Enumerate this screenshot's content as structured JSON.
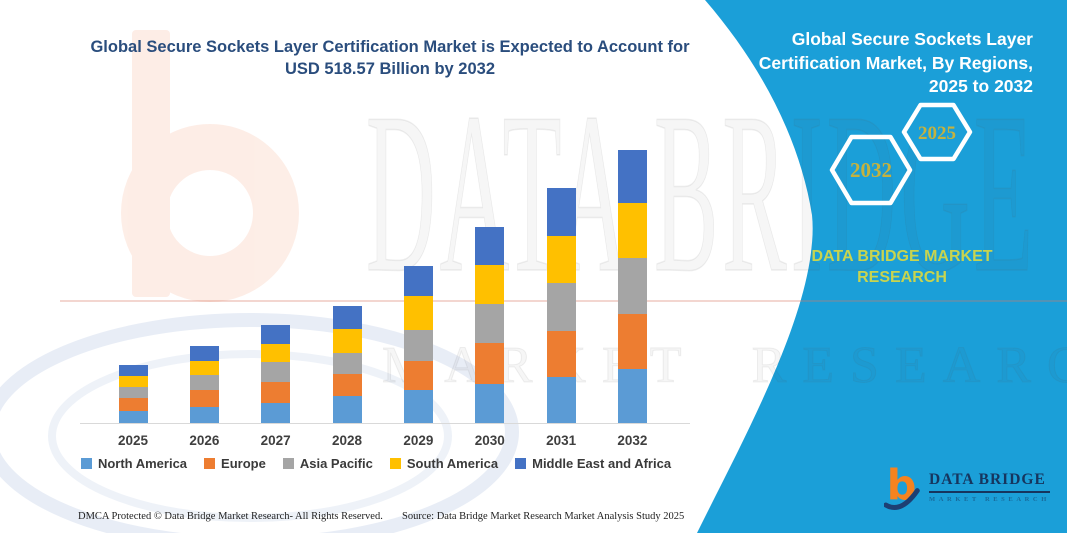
{
  "title": {
    "line1": "Global Secure Sockets Layer Certification Market is Expected to Account for",
    "line2": "USD 518.57 Billion by 2032"
  },
  "chart_data": {
    "type": "bar",
    "stacked": true,
    "unit": "USD Billion",
    "title": "Global Secure Sockets Layer Certification Market is Expected to Account for USD 518.57 Billion by 2032",
    "categories": [
      "2025",
      "2026",
      "2027",
      "2028",
      "2029",
      "2030",
      "2031",
      "2032"
    ],
    "series": [
      {
        "name": "North America",
        "color": "#5B9BD5",
        "values": [
          22.4,
          31.0,
          37.5,
          50.8,
          62.3,
          74.9,
          87.7,
          102.8
        ]
      },
      {
        "name": "Europe",
        "color": "#ED7D31",
        "values": [
          25.3,
          31.5,
          40.0,
          43.2,
          55.3,
          77.6,
          87.1,
          104.9
        ]
      },
      {
        "name": "Asia Pacific",
        "color": "#A5A5A5",
        "values": [
          20.9,
          28.0,
          38.1,
          39.4,
          59.1,
          73.0,
          90.9,
          104.9
        ]
      },
      {
        "name": "South America",
        "color": "#FFC000",
        "values": [
          20.3,
          27.5,
          35.0,
          45.8,
          64.8,
          74.4,
          90.2,
          104.9
        ]
      },
      {
        "name": "Middle East and Africa",
        "color": "#4472C4",
        "values": [
          22.2,
          29.0,
          36.2,
          43.2,
          57.3,
          71.9,
          90.9,
          101.07
        ]
      }
    ],
    "totals_estimated": [
      111.1,
      147.0,
      186.8,
      222.4,
      298.8,
      371.8,
      446.8,
      518.57
    ],
    "ylim": [
      0,
      585
    ],
    "grid": false,
    "y_axis_shown": false,
    "legend_position": "bottom"
  },
  "panel": {
    "bg_color": "#1b9fd8",
    "heading_lines": [
      "Global Secure Sockets Layer",
      "Certification Market, By Regions,",
      "2025 to 2032"
    ],
    "hexagons": [
      {
        "label": "2032"
      },
      {
        "label": "2025"
      }
    ],
    "hexagon_text_color": "#c4b23f",
    "brand_lines": [
      "DATA BRIDGE MARKET",
      "RESEARCH"
    ],
    "brand_color": "#c8d44f",
    "logo": {
      "name": "DATA BRIDGE",
      "subname": "MARKET RESEARCH"
    }
  },
  "watermark": {
    "text_top": "DATA BRIDGE",
    "text_bottom": "MARKET RESEARCH"
  },
  "footer": {
    "left": "DMCA Protected © Data Bridge Market Research-  All Rights Reserved.",
    "right": "Source: Data Bridge Market Research  Market Analysis Study 2025"
  }
}
